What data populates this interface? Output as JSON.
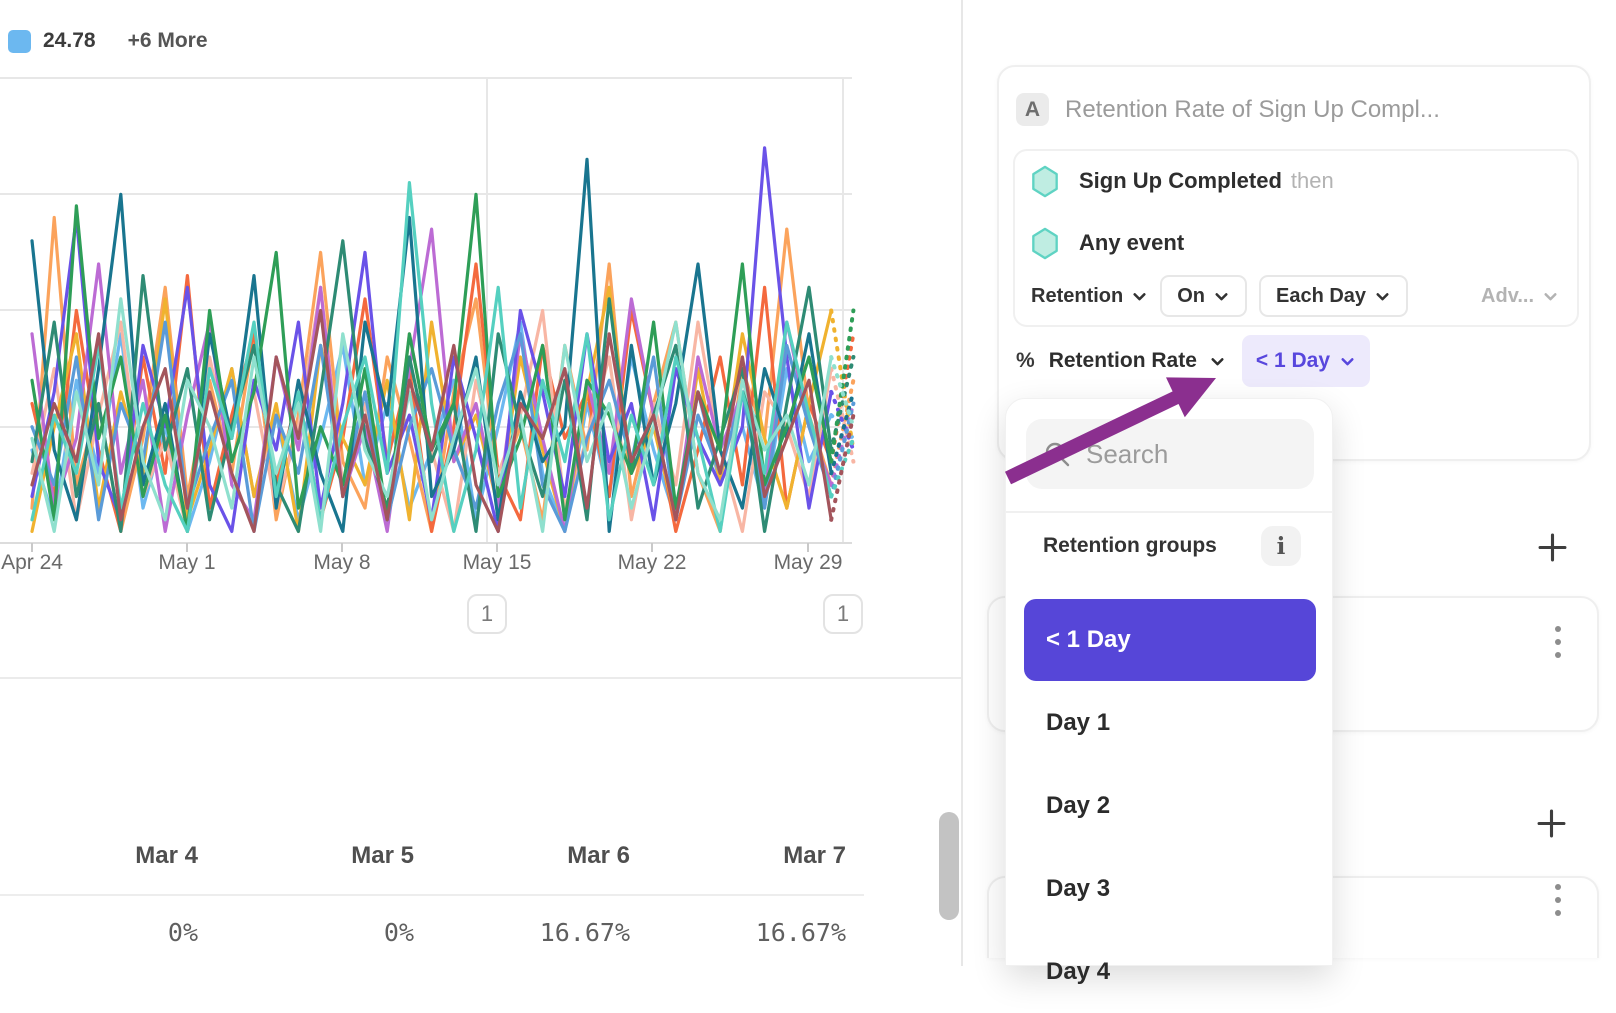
{
  "legend": {
    "series_label": "24.78",
    "more_label": "+6 More",
    "series_color": "#6CB8F0"
  },
  "chart_data": {
    "type": "line",
    "title": "",
    "xlabel": "",
    "ylabel": "",
    "x_tick_labels": [
      "Apr 24",
      "May 1",
      "May 8",
      "May 15",
      "May 22",
      "May 29"
    ],
    "annotation_badges": [
      "1",
      "1"
    ],
    "ylim": [
      0,
      40
    ],
    "y_axis_labels_visible": false,
    "grid": true,
    "legend_position": "top-left",
    "legend_visible_entry": "24.78",
    "legend_more": "+6 More",
    "series": [
      {
        "color": "#6CB8F0",
        "values": [
          8,
          2,
          14,
          6,
          18,
          3,
          10,
          1,
          7,
          15,
          4,
          11,
          2,
          9,
          17,
          5,
          12,
          3,
          8,
          14,
          2,
          10,
          19,
          6,
          1,
          12,
          4,
          16,
          8,
          2,
          13,
          5,
          10,
          3,
          15,
          7,
          11,
          9
        ]
      },
      {
        "color": "#FBA35C",
        "values": [
          3,
          28,
          5,
          12,
          1,
          9,
          22,
          4,
          14,
          6,
          18,
          2,
          11,
          25,
          7,
          3,
          16,
          9,
          1,
          13,
          21,
          5,
          10,
          2,
          17,
          8,
          24,
          4,
          12,
          19,
          6,
          1,
          15,
          9,
          27,
          11,
          5,
          14
        ]
      },
      {
        "color": "#F4693E",
        "values": [
          12,
          4,
          20,
          8,
          1,
          16,
          6,
          23,
          3,
          11,
          18,
          5,
          13,
          2,
          9,
          21,
          7,
          15,
          1,
          10,
          24,
          6,
          2,
          17,
          9,
          13,
          4,
          20,
          11,
          1,
          8,
          16,
          5,
          22,
          3,
          12,
          7,
          18
        ]
      },
      {
        "color": "#F8B6A4",
        "values": [
          6,
          15,
          2,
          11,
          19,
          4,
          9,
          1,
          16,
          7,
          13,
          3,
          10,
          22,
          5,
          12,
          2,
          18,
          8,
          1,
          14,
          6,
          11,
          20,
          3,
          9,
          16,
          2,
          12,
          5,
          19,
          8,
          1,
          13,
          10,
          4,
          15,
          7
        ]
      },
      {
        "color": "#F0B22F",
        "values": [
          1,
          10,
          18,
          3,
          13,
          6,
          21,
          2,
          8,
          15,
          4,
          12,
          1,
          17,
          9,
          5,
          14,
          2,
          19,
          7,
          11,
          3,
          16,
          8,
          1,
          13,
          22,
          6,
          10,
          2,
          15,
          5,
          18,
          9,
          3,
          12,
          20,
          8
        ]
      },
      {
        "color": "#BC6BD4",
        "values": [
          18,
          3,
          9,
          24,
          6,
          14,
          1,
          11,
          19,
          5,
          2,
          16,
          8,
          22,
          4,
          10,
          1,
          15,
          27,
          7,
          12,
          3,
          18,
          9,
          1,
          14,
          6,
          21,
          11,
          2,
          16,
          8,
          13,
          4,
          19,
          10,
          5,
          12
        ]
      },
      {
        "color": "#6A52E8",
        "values": [
          4,
          13,
          28,
          7,
          2,
          17,
          10,
          22,
          5,
          1,
          14,
          8,
          19,
          3,
          12,
          25,
          6,
          11,
          2,
          16,
          9,
          1,
          20,
          13,
          4,
          18,
          7,
          12,
          2,
          15,
          9,
          5,
          10,
          34,
          16,
          3,
          13,
          8
        ]
      },
      {
        "color": "#5A9BD8",
        "values": [
          10,
          5,
          16,
          2,
          12,
          7,
          19,
          3,
          9,
          14,
          1,
          11,
          6,
          17,
          4,
          13,
          2,
          10,
          15,
          8,
          3,
          12,
          18,
          5,
          1,
          9,
          14,
          7,
          16,
          2,
          11,
          6,
          13,
          3,
          17,
          10,
          4,
          12
        ]
      },
      {
        "color": "#19758F",
        "values": [
          26,
          8,
          2,
          15,
          30,
          5,
          12,
          1,
          18,
          9,
          23,
          3,
          14,
          6,
          1,
          19,
          11,
          28,
          4,
          8,
          16,
          2,
          13,
          7,
          10,
          33,
          1,
          17,
          5,
          12,
          24,
          8,
          3,
          15,
          9,
          18,
          6,
          13
        ]
      },
      {
        "color": "#2E8B74",
        "values": [
          7,
          19,
          4,
          12,
          1,
          23,
          8,
          15,
          2,
          10,
          17,
          5,
          1,
          13,
          26,
          9,
          3,
          16,
          7,
          12,
          1,
          18,
          10,
          4,
          14,
          2,
          21,
          6,
          11,
          17,
          3,
          9,
          15,
          1,
          12,
          22,
          8,
          16
        ]
      },
      {
        "color": "#2E9E57",
        "values": [
          14,
          2,
          29,
          9,
          16,
          4,
          11,
          1,
          20,
          7,
          13,
          25,
          3,
          10,
          5,
          15,
          2,
          18,
          8,
          12,
          30,
          4,
          9,
          17,
          2,
          14,
          11,
          6,
          19,
          3,
          13,
          8,
          24,
          5,
          10,
          16,
          7,
          20
        ]
      },
      {
        "color": "#55D0C0",
        "values": [
          2,
          11,
          6,
          17,
          3,
          12,
          5,
          1,
          15,
          9,
          19,
          4,
          13,
          2,
          10,
          16,
          6,
          31,
          12,
          1,
          8,
          22,
          3,
          14,
          7,
          18,
          2,
          11,
          5,
          16,
          9,
          1,
          13,
          6,
          19,
          11,
          4,
          9
        ]
      },
      {
        "color": "#8FE0CE",
        "values": [
          9,
          1,
          13,
          5,
          21,
          7,
          2,
          14,
          10,
          3,
          16,
          6,
          12,
          1,
          18,
          8,
          4,
          13,
          2,
          9,
          15,
          5,
          11,
          1,
          17,
          7,
          12,
          3,
          10,
          19,
          6,
          2,
          14,
          8,
          11,
          5,
          16,
          10
        ]
      },
      {
        "color": "#A3555C",
        "values": [
          5,
          12,
          7,
          18,
          2,
          10,
          15,
          3,
          13,
          6,
          1,
          16,
          9,
          20,
          4,
          11,
          2,
          14,
          8,
          17,
          5,
          1,
          12,
          9,
          15,
          3,
          18,
          7,
          11,
          2,
          13,
          6,
          16,
          4,
          9,
          14,
          2,
          11
        ]
      }
    ]
  },
  "summary_table": {
    "headers": [
      "Mar 4",
      "Mar 5",
      "Mar 6",
      "Mar 7"
    ],
    "values": [
      "0%",
      "0%",
      "16.67%",
      "16.67%"
    ]
  },
  "panel": {
    "query_card": {
      "badge": "A",
      "title": "Retention Rate of Sign Up Compl...",
      "first_event": "Sign Up Completed",
      "first_event_suffix": "then",
      "return_event": "Any event",
      "mode_label": "Retention",
      "on_label": "On",
      "interval_label": "Each Day",
      "advanced_label": "Adv...",
      "metric_symbol": "%",
      "metric_label": "Retention Rate",
      "bracket_label": "< 1 Day"
    },
    "dropdown": {
      "search_placeholder": "Search",
      "section_label": "Retention groups",
      "info_label": "i",
      "items": [
        "< 1 Day",
        "Day 1",
        "Day 2",
        "Day 3",
        "Day 4"
      ],
      "selected_item": "< 1 Day"
    }
  },
  "colors": {
    "accent": "#5646D8",
    "accent_light": "#EDEAFC",
    "accent_text": "#5847DD",
    "arrow": "#8B2F8F",
    "hexagon_fill": "#BFEDE2",
    "hexagon_stroke": "#5FD3C3",
    "legend_swatch": "#6CB8F0"
  }
}
